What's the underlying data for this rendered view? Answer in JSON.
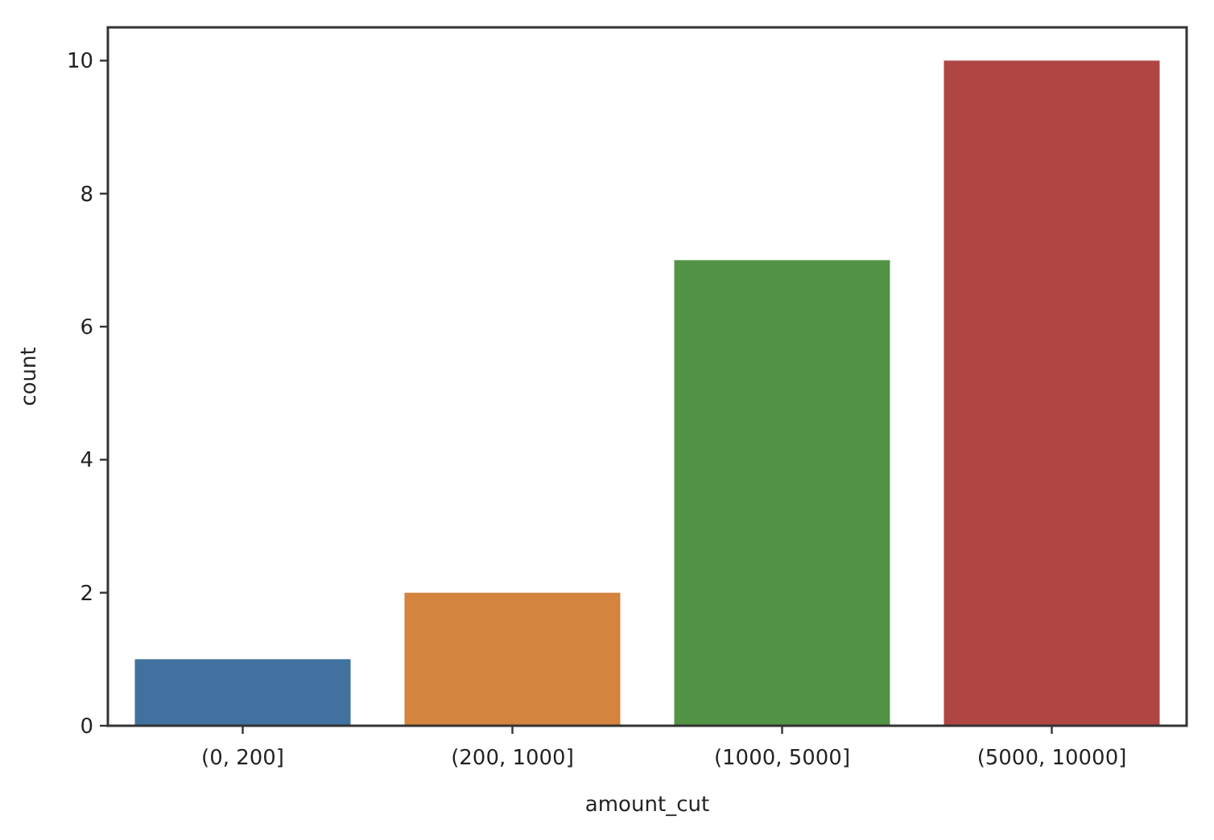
{
  "chart_data": {
    "type": "bar",
    "xlabel": "amount_cut",
    "ylabel": "count",
    "categories": [
      "(0, 200]",
      "(200, 1000]",
      "(1000, 5000]",
      "(5000, 10000]"
    ],
    "values": [
      1,
      2,
      7,
      10
    ],
    "colors": [
      "#41729f",
      "#d4843f",
      "#539345",
      "#b04644"
    ],
    "ylim": [
      0,
      10.5
    ],
    "yticks": [
      0,
      2,
      4,
      6,
      8,
      10
    ]
  }
}
